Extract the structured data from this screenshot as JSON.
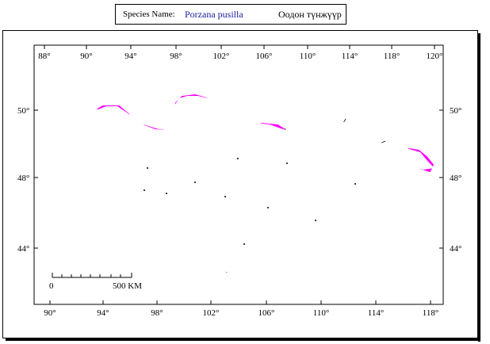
{
  "header": {
    "label": "Species Name:",
    "species_latin": "Porzana pusilla",
    "species_local": "Оодон түнжүүр"
  },
  "map": {
    "top_lon_labels": [
      "88°",
      "90°",
      "94°",
      "98°",
      "102°",
      "106°",
      "110°",
      "114°",
      "118°",
      "120°"
    ],
    "bottom_lon_labels": [
      "90°",
      "94°",
      "98°",
      "102°",
      "106°",
      "110°",
      "114°",
      "118°"
    ],
    "left_lat_labels": [
      "50°",
      "48°",
      "44°"
    ],
    "right_lat_labels": [
      "50°",
      "48°",
      "44°"
    ],
    "scale_bar": {
      "start": "0",
      "end": "500 KM"
    },
    "colors": {
      "border": "#c85a1e",
      "range": "#ff00ff",
      "water": "#4a6fa8",
      "lines": "#000000"
    }
  }
}
